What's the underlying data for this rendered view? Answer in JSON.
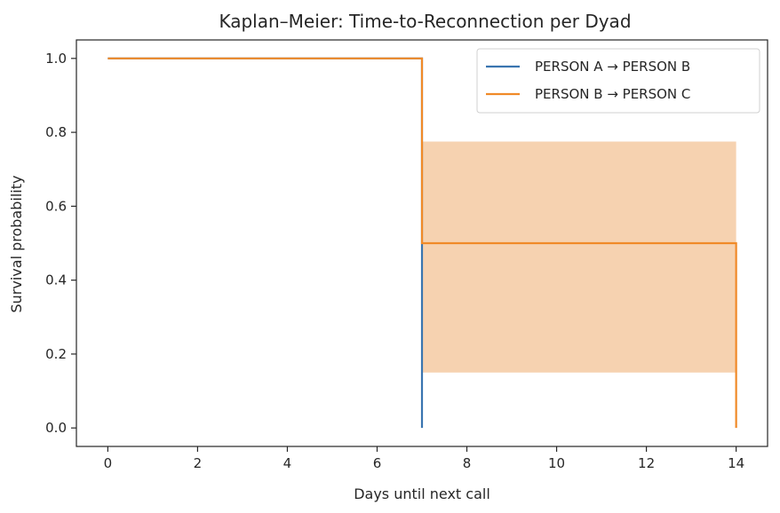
{
  "chart_data": {
    "type": "line",
    "title": "Kaplan–Meier: Time-to-Reconnection per Dyad",
    "xlabel": "Days until next call",
    "ylabel": "Survival probability",
    "xlim": [
      -0.7,
      14.7
    ],
    "ylim": [
      -0.05,
      1.05
    ],
    "xticks": [
      0,
      2,
      4,
      6,
      8,
      10,
      12,
      14
    ],
    "xtick_labels": [
      "0",
      "2",
      "4",
      "6",
      "8",
      "10",
      "12",
      "14"
    ],
    "yticks": [
      0.0,
      0.2,
      0.4,
      0.6,
      0.8,
      1.0
    ],
    "ytick_labels": [
      "0.0",
      "0.2",
      "0.4",
      "0.6",
      "0.8",
      "1.0"
    ],
    "grid": false,
    "legend_position": "top-right",
    "series": [
      {
        "name": "PERSON A → PERSON B",
        "color": "#3a75b0",
        "step": true,
        "x": [
          0,
          7,
          7
        ],
        "y": [
          1.0,
          1.0,
          0.0
        ]
      },
      {
        "name": "PERSON B → PERSON C",
        "color": "#f08a28",
        "step": true,
        "x": [
          0,
          7,
          7,
          14,
          14
        ],
        "y": [
          1.0,
          1.0,
          0.5,
          0.5,
          0.0
        ],
        "ci_band": {
          "color": "#f6d2b0",
          "x": [
            7,
            14
          ],
          "lower": [
            0.15,
            0.15
          ],
          "upper": [
            0.775,
            0.775
          ]
        }
      }
    ]
  }
}
